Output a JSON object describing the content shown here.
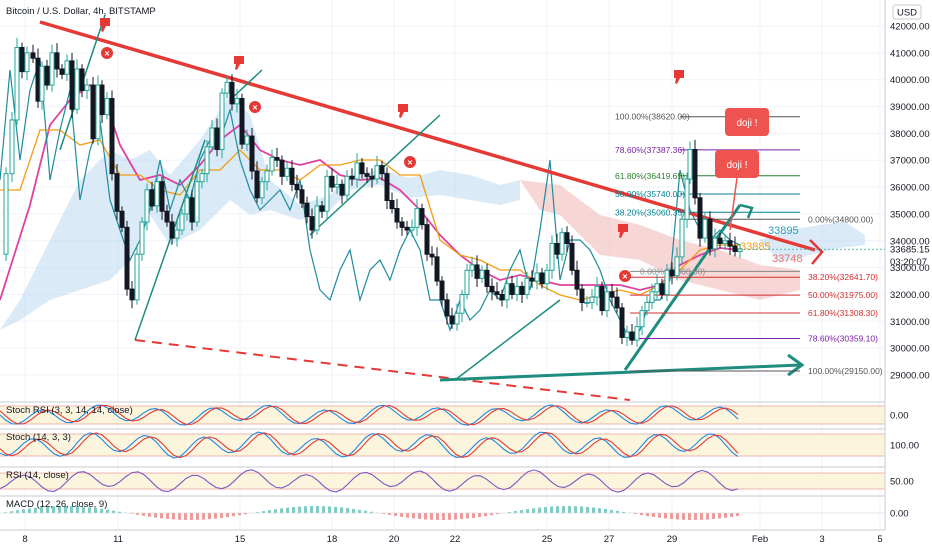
{
  "header": {
    "title": "Bitcoin / U.S. Dollar, 4h, BITSTAMP"
  },
  "price_axis": {
    "currency": "USD",
    "ticks": [
      "42000.00",
      "41000.00",
      "40000.00",
      "39000.00",
      "38000.00",
      "37000.00",
      "36000.00",
      "35000.00",
      "34000.00",
      "33000.00",
      "32000.00",
      "31000.00",
      "30000.00",
      "29000.00"
    ],
    "current_price": "33685.15",
    "countdown": "03:20:07"
  },
  "time_axis": {
    "ticks": [
      "8",
      "11",
      "15",
      "18",
      "20",
      "22",
      "25",
      "27",
      "29",
      "Feb",
      "3",
      "5"
    ]
  },
  "fib_levels": [
    {
      "label": "100.00%(38620.00)",
      "price": 38620,
      "color": "#555555"
    },
    {
      "label": "78.60%(37387.36)",
      "price": 37387.36,
      "color": "#7b1fa2"
    },
    {
      "label": "61.80%(36419.65)",
      "price": 36419.65,
      "color": "#2e7d32"
    },
    {
      "label": "50.00%(35740.00)",
      "price": 35740,
      "color": "#00838f"
    },
    {
      "label": "38.20%(35060.35)",
      "price": 35060.35,
      "color": "#00838f"
    },
    {
      "label": "0.00%(34800.00)",
      "price": 34800,
      "color": "#555555"
    },
    {
      "label": "0.00%(32860.00)",
      "price": 32860,
      "color": "#888888"
    },
    {
      "label": "38.20%(32641.70)",
      "price": 32641.7,
      "color": "#d32f2f"
    },
    {
      "label": "50.00%(31975.00)",
      "price": 31975,
      "color": "#d32f2f"
    },
    {
      "label": "61.80%(31308.30)",
      "price": 31308.3,
      "color": "#d32f2f"
    },
    {
      "label": "78.60%(30359.10)",
      "price": 30359.1,
      "color": "#7b1fa2"
    },
    {
      "label": "100.00%(29150.00)",
      "price": 29150,
      "color": "#555555"
    }
  ],
  "annotations": {
    "doji1": "doji !",
    "doji2": "doji !",
    "level1": "33895",
    "level2": "33885",
    "level3": "33748"
  },
  "indicators": [
    {
      "name": "stoch-rsi",
      "label": "Stoch RSI (3, 3, 14, 14, close)",
      "value": "0.00"
    },
    {
      "name": "stoch",
      "label": "Stoch (14, 3, 3)",
      "value": "100.00"
    },
    {
      "name": "rsi",
      "label": "RSI (14, close)",
      "value": "50.00"
    },
    {
      "name": "macd",
      "label": "MACD (12, 26, close, 9)",
      "value": "0.00"
    }
  ],
  "colors": {
    "up": "#26a69a",
    "down": "#131722",
    "trendline": "#e53935",
    "support": "#1e8c7e",
    "ma_pink": "#e040a0",
    "ma_orange": "#f39c12",
    "cloud_blue": "#bcd9f0",
    "cloud_red": "#f4c4c4"
  },
  "chart_data": {
    "type": "candlestick",
    "title": "Bitcoin / U.S. Dollar, 4h, BITSTAMP",
    "ylim": [
      28300,
      42700
    ],
    "close_path": [
      [
        0,
        33500
      ],
      [
        6,
        36500
      ],
      [
        12,
        38500
      ],
      [
        17,
        41200
      ],
      [
        22,
        40300
      ],
      [
        27,
        41000
      ],
      [
        33,
        40800
      ],
      [
        38,
        39200
      ],
      [
        42,
        40500
      ],
      [
        47,
        39800
      ],
      [
        52,
        41000
      ],
      [
        57,
        40400
      ],
      [
        62,
        40200
      ],
      [
        67,
        40700
      ],
      [
        72,
        38900
      ],
      [
        77,
        40400
      ],
      [
        82,
        39600
      ],
      [
        87,
        39800
      ],
      [
        93,
        37800
      ],
      [
        98,
        39800
      ],
      [
        102,
        38700
      ],
      [
        107,
        39300
      ],
      [
        112,
        36500
      ],
      [
        117,
        35100
      ],
      [
        122,
        34500
      ],
      [
        127,
        32200
      ],
      [
        132,
        31800
      ],
      [
        137,
        33500
      ],
      [
        142,
        34700
      ],
      [
        147,
        35900
      ],
      [
        152,
        35300
      ],
      [
        157,
        36200
      ],
      [
        162,
        35100
      ],
      [
        167,
        34700
      ],
      [
        172,
        34100
      ],
      [
        177,
        34400
      ],
      [
        182,
        35000
      ],
      [
        187,
        35600
      ],
      [
        192,
        34700
      ],
      [
        197,
        36200
      ],
      [
        202,
        36500
      ],
      [
        207,
        37500
      ],
      [
        212,
        38200
      ],
      [
        217,
        37400
      ],
      [
        222,
        39500
      ],
      [
        227,
        39900
      ],
      [
        232,
        39100
      ],
      [
        237,
        39300
      ],
      [
        242,
        37600
      ],
      [
        247,
        37900
      ],
      [
        252,
        36600
      ],
      [
        257,
        35600
      ],
      [
        262,
        36200
      ],
      [
        267,
        36600
      ],
      [
        272,
        37100
      ],
      [
        277,
        37000
      ],
      [
        282,
        36400
      ],
      [
        287,
        36700
      ],
      [
        292,
        36100
      ],
      [
        297,
        35900
      ],
      [
        302,
        35400
      ],
      [
        307,
        34900
      ],
      [
        312,
        34400
      ],
      [
        317,
        35300
      ],
      [
        322,
        35100
      ],
      [
        327,
        36400
      ],
      [
        332,
        36000
      ],
      [
        337,
        36100
      ],
      [
        342,
        35700
      ],
      [
        347,
        36400
      ],
      [
        352,
        36300
      ],
      [
        357,
        36900
      ],
      [
        362,
        36500
      ],
      [
        367,
        36400
      ],
      [
        372,
        36300
      ],
      [
        377,
        36800
      ],
      [
        382,
        36500
      ],
      [
        387,
        35500
      ],
      [
        392,
        35200
      ],
      [
        397,
        34700
      ],
      [
        402,
        34500
      ],
      [
        407,
        34400
      ],
      [
        412,
        34500
      ],
      [
        417,
        35200
      ],
      [
        422,
        34600
      ],
      [
        427,
        33500
      ],
      [
        432,
        33400
      ],
      [
        437,
        32500
      ],
      [
        442,
        31800
      ],
      [
        447,
        31200
      ],
      [
        452,
        30900
      ],
      [
        457,
        31300
      ],
      [
        462,
        32000
      ],
      [
        467,
        32900
      ],
      [
        472,
        33100
      ],
      [
        477,
        32600
      ],
      [
        482,
        32900
      ],
      [
        487,
        32300
      ],
      [
        492,
        32100
      ],
      [
        497,
        32000
      ],
      [
        502,
        31800
      ],
      [
        507,
        32400
      ],
      [
        512,
        32000
      ],
      [
        517,
        32300
      ],
      [
        522,
        32000
      ],
      [
        527,
        32600
      ],
      [
        532,
        32500
      ],
      [
        537,
        32800
      ],
      [
        542,
        32400
      ],
      [
        547,
        32900
      ],
      [
        552,
        33900
      ],
      [
        557,
        33500
      ],
      [
        562,
        34300
      ],
      [
        567,
        33900
      ],
      [
        572,
        32900
      ],
      [
        577,
        32200
      ],
      [
        582,
        31700
      ],
      [
        587,
        31700
      ],
      [
        592,
        31900
      ],
      [
        597,
        32300
      ],
      [
        602,
        31400
      ],
      [
        607,
        32100
      ],
      [
        612,
        31900
      ],
      [
        617,
        31500
      ],
      [
        622,
        30400
      ],
      [
        627,
        30600
      ],
      [
        632,
        30300
      ],
      [
        637,
        30800
      ],
      [
        642,
        31400
      ],
      [
        647,
        31700
      ],
      [
        652,
        32100
      ],
      [
        657,
        32400
      ],
      [
        662,
        32000
      ],
      [
        667,
        32900
      ],
      [
        672,
        32700
      ],
      [
        677,
        33400
      ],
      [
        682,
        34800
      ],
      [
        687,
        36300
      ],
      [
        690,
        37400
      ],
      [
        695,
        35600
      ],
      [
        700,
        34100
      ],
      [
        705,
        34800
      ],
      [
        710,
        33700
      ],
      [
        715,
        34100
      ],
      [
        720,
        33900
      ],
      [
        725,
        34000
      ],
      [
        730,
        33800
      ],
      [
        735,
        33600
      ],
      [
        740,
        33700
      ]
    ]
  }
}
